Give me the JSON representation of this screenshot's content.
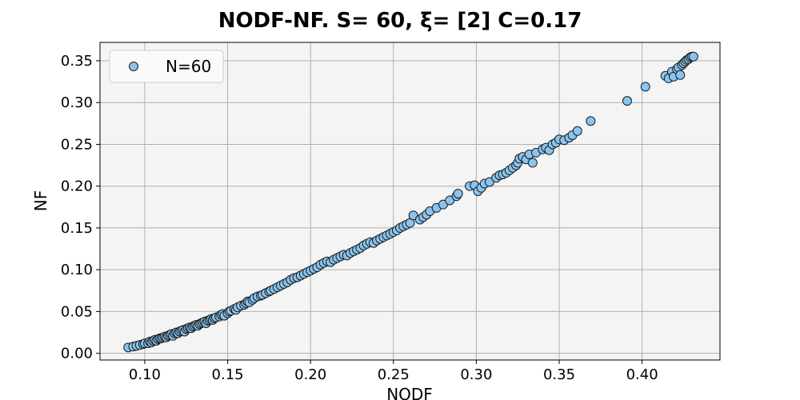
{
  "chart_data": {
    "type": "scatter",
    "title": "NODF-NF. S= 60, ξ= [2] C=0.17",
    "xlabel": "NODF",
    "ylabel": "NF",
    "xlim": [
      0.073,
      0.447
    ],
    "ylim": [
      -0.008,
      0.372
    ],
    "xticks": [
      0.1,
      0.15,
      0.2,
      0.25,
      0.3,
      0.35,
      0.4
    ],
    "xtick_labels": [
      "0.10",
      "0.15",
      "0.20",
      "0.25",
      "0.30",
      "0.35",
      "0.40"
    ],
    "yticks": [
      0.0,
      0.05,
      0.1,
      0.15,
      0.2,
      0.25,
      0.3,
      0.35
    ],
    "ytick_labels": [
      "0.00",
      "0.05",
      "0.10",
      "0.15",
      "0.20",
      "0.25",
      "0.30",
      "0.35"
    ],
    "grid": true,
    "legend_position": "top-left",
    "series": [
      {
        "name": "N=60",
        "color": "#89c4f0",
        "edge_color": "#1a1a1a",
        "points": [
          [
            0.09,
            0.007
          ],
          [
            0.093,
            0.008
          ],
          [
            0.095,
            0.009
          ],
          [
            0.097,
            0.01
          ],
          [
            0.099,
            0.011
          ],
          [
            0.1,
            0.012
          ],
          [
            0.102,
            0.012
          ],
          [
            0.103,
            0.014
          ],
          [
            0.104,
            0.013
          ],
          [
            0.105,
            0.015
          ],
          [
            0.106,
            0.016
          ],
          [
            0.107,
            0.015
          ],
          [
            0.108,
            0.017
          ],
          [
            0.109,
            0.018
          ],
          [
            0.11,
            0.018
          ],
          [
            0.111,
            0.019
          ],
          [
            0.112,
            0.02
          ],
          [
            0.113,
            0.019
          ],
          [
            0.114,
            0.021
          ],
          [
            0.115,
            0.022
          ],
          [
            0.116,
            0.023
          ],
          [
            0.117,
            0.021
          ],
          [
            0.118,
            0.024
          ],
          [
            0.119,
            0.025
          ],
          [
            0.12,
            0.024
          ],
          [
            0.121,
            0.026
          ],
          [
            0.122,
            0.027
          ],
          [
            0.123,
            0.028
          ],
          [
            0.124,
            0.026
          ],
          [
            0.125,
            0.029
          ],
          [
            0.126,
            0.03
          ],
          [
            0.127,
            0.031
          ],
          [
            0.128,
            0.03
          ],
          [
            0.129,
            0.032
          ],
          [
            0.13,
            0.033
          ],
          [
            0.131,
            0.034
          ],
          [
            0.132,
            0.033
          ],
          [
            0.133,
            0.035
          ],
          [
            0.134,
            0.036
          ],
          [
            0.135,
            0.037
          ],
          [
            0.136,
            0.038
          ],
          [
            0.137,
            0.036
          ],
          [
            0.138,
            0.039
          ],
          [
            0.139,
            0.04
          ],
          [
            0.14,
            0.041
          ],
          [
            0.141,
            0.04
          ],
          [
            0.142,
            0.042
          ],
          [
            0.143,
            0.043
          ],
          [
            0.145,
            0.044
          ],
          [
            0.146,
            0.046
          ],
          [
            0.147,
            0.047
          ],
          [
            0.148,
            0.045
          ],
          [
            0.15,
            0.048
          ],
          [
            0.151,
            0.05
          ],
          [
            0.152,
            0.051
          ],
          [
            0.154,
            0.053
          ],
          [
            0.155,
            0.052
          ],
          [
            0.156,
            0.055
          ],
          [
            0.158,
            0.057
          ],
          [
            0.16,
            0.058
          ],
          [
            0.161,
            0.06
          ],
          [
            0.162,
            0.062
          ],
          [
            0.163,
            0.061
          ],
          [
            0.165,
            0.064
          ],
          [
            0.166,
            0.066
          ],
          [
            0.168,
            0.068
          ],
          [
            0.17,
            0.069
          ],
          [
            0.171,
            0.07
          ],
          [
            0.173,
            0.072
          ],
          [
            0.175,
            0.074
          ],
          [
            0.176,
            0.075
          ],
          [
            0.178,
            0.077
          ],
          [
            0.18,
            0.079
          ],
          [
            0.182,
            0.081
          ],
          [
            0.184,
            0.083
          ],
          [
            0.186,
            0.085
          ],
          [
            0.188,
            0.088
          ],
          [
            0.19,
            0.09
          ],
          [
            0.192,
            0.091
          ],
          [
            0.194,
            0.093
          ],
          [
            0.196,
            0.095
          ],
          [
            0.198,
            0.097
          ],
          [
            0.2,
            0.099
          ],
          [
            0.202,
            0.101
          ],
          [
            0.204,
            0.103
          ],
          [
            0.206,
            0.106
          ],
          [
            0.208,
            0.108
          ],
          [
            0.21,
            0.11
          ],
          [
            0.212,
            0.109
          ],
          [
            0.214,
            0.112
          ],
          [
            0.216,
            0.114
          ],
          [
            0.218,
            0.116
          ],
          [
            0.22,
            0.118
          ],
          [
            0.222,
            0.117
          ],
          [
            0.224,
            0.12
          ],
          [
            0.226,
            0.122
          ],
          [
            0.228,
            0.124
          ],
          [
            0.23,
            0.126
          ],
          [
            0.232,
            0.129
          ],
          [
            0.234,
            0.131
          ],
          [
            0.236,
            0.133
          ],
          [
            0.238,
            0.132
          ],
          [
            0.24,
            0.135
          ],
          [
            0.242,
            0.137
          ],
          [
            0.244,
            0.139
          ],
          [
            0.246,
            0.141
          ],
          [
            0.248,
            0.143
          ],
          [
            0.25,
            0.145
          ],
          [
            0.252,
            0.147
          ],
          [
            0.254,
            0.15
          ],
          [
            0.256,
            0.152
          ],
          [
            0.258,
            0.154
          ],
          [
            0.26,
            0.156
          ],
          [
            0.262,
            0.165
          ],
          [
            0.266,
            0.16
          ],
          [
            0.268,
            0.163
          ],
          [
            0.27,
            0.166
          ],
          [
            0.272,
            0.17
          ],
          [
            0.276,
            0.174
          ],
          [
            0.28,
            0.178
          ],
          [
            0.284,
            0.183
          ],
          [
            0.288,
            0.188
          ],
          [
            0.289,
            0.191
          ],
          [
            0.296,
            0.2
          ],
          [
            0.299,
            0.201
          ],
          [
            0.301,
            0.194
          ],
          [
            0.303,
            0.198
          ],
          [
            0.305,
            0.203
          ],
          [
            0.308,
            0.205
          ],
          [
            0.312,
            0.21
          ],
          [
            0.314,
            0.213
          ],
          [
            0.316,
            0.214
          ],
          [
            0.318,
            0.216
          ],
          [
            0.32,
            0.219
          ],
          [
            0.322,
            0.222
          ],
          [
            0.324,
            0.225
          ],
          [
            0.325,
            0.228
          ],
          [
            0.326,
            0.233
          ],
          [
            0.328,
            0.235
          ],
          [
            0.33,
            0.232
          ],
          [
            0.332,
            0.238
          ],
          [
            0.334,
            0.228
          ],
          [
            0.336,
            0.24
          ],
          [
            0.34,
            0.244
          ],
          [
            0.342,
            0.246
          ],
          [
            0.344,
            0.243
          ],
          [
            0.346,
            0.25
          ],
          [
            0.348,
            0.252
          ],
          [
            0.35,
            0.256
          ],
          [
            0.353,
            0.255
          ],
          [
            0.356,
            0.258
          ],
          [
            0.358,
            0.261
          ],
          [
            0.361,
            0.266
          ],
          [
            0.369,
            0.278
          ],
          [
            0.391,
            0.302
          ],
          [
            0.402,
            0.319
          ],
          [
            0.414,
            0.332
          ],
          [
            0.416,
            0.329
          ],
          [
            0.418,
            0.337
          ],
          [
            0.419,
            0.331
          ],
          [
            0.421,
            0.34
          ],
          [
            0.422,
            0.342
          ],
          [
            0.423,
            0.333
          ],
          [
            0.424,
            0.345
          ],
          [
            0.425,
            0.347
          ],
          [
            0.426,
            0.349
          ],
          [
            0.427,
            0.351
          ],
          [
            0.428,
            0.352
          ],
          [
            0.429,
            0.354
          ],
          [
            0.43,
            0.355
          ],
          [
            0.431,
            0.355
          ]
        ]
      }
    ]
  }
}
